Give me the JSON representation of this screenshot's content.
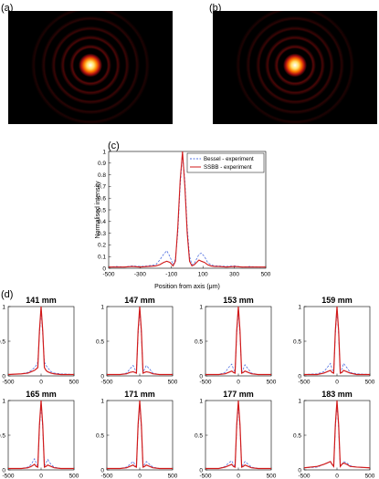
{
  "panels": {
    "a": "(a)",
    "b": "(b)",
    "c": "(c)",
    "d": "(d)"
  },
  "beam_images": [
    {
      "name": "beam-image-a",
      "ring_color": "#b01010",
      "core_color": "#ffe066"
    },
    {
      "name": "beam-image-b",
      "ring_color": "#b01010",
      "core_color": "#ffe066"
    }
  ],
  "chart_data": [
    {
      "type": "line",
      "xlabel": "Position from axis (μm)",
      "ylabel": "Normalised intensity",
      "xlim": [
        -500,
        500
      ],
      "ylim": [
        0,
        1
      ],
      "xticks": [
        "-500",
        "-300",
        "-100",
        "100",
        "300",
        "500"
      ],
      "yticks": [
        "0",
        "0.1",
        "0.2",
        "0.3",
        "0.4",
        "0.5",
        "0.6",
        "0.7",
        "0.8",
        "0.9",
        "1"
      ],
      "legend_position": "top-right",
      "series": [
        {
          "name": "Bessel - experiment",
          "color": "#4f6fe0",
          "style": "dashed",
          "x": [
            -500,
            -450,
            -400,
            -350,
            -300,
            -250,
            -200,
            -175,
            -150,
            -130,
            -110,
            -90,
            -75,
            -60,
            -45,
            -30,
            -15,
            0,
            15,
            30,
            45,
            60,
            75,
            90,
            110,
            130,
            150,
            175,
            200,
            250,
            300,
            350,
            400,
            450,
            500
          ],
          "y": [
            0.01,
            0.015,
            0.01,
            0.02,
            0.015,
            0.02,
            0.03,
            0.07,
            0.12,
            0.15,
            0.1,
            0.03,
            0.08,
            0.3,
            0.7,
            0.98,
            0.75,
            0.35,
            0.1,
            0.03,
            0.04,
            0.08,
            0.12,
            0.13,
            0.1,
            0.05,
            0.03,
            0.02,
            0.02,
            0.015,
            0.02,
            0.01,
            0.015,
            0.01,
            0.01
          ]
        },
        {
          "name": "SSBB - experiment",
          "color": "#d11a1a",
          "style": "solid",
          "x": [
            -500,
            -450,
            -400,
            -350,
            -300,
            -250,
            -200,
            -175,
            -150,
            -130,
            -110,
            -90,
            -75,
            -60,
            -45,
            -30,
            -15,
            0,
            15,
            30,
            45,
            60,
            75,
            90,
            110,
            130,
            150,
            175,
            200,
            250,
            300,
            350,
            400,
            450,
            500
          ],
          "y": [
            0.01,
            0.01,
            0.01,
            0.015,
            0.01,
            0.015,
            0.02,
            0.03,
            0.05,
            0.06,
            0.05,
            0.02,
            0.06,
            0.35,
            0.75,
            1.0,
            0.7,
            0.3,
            0.06,
            0.02,
            0.03,
            0.05,
            0.07,
            0.06,
            0.05,
            0.03,
            0.02,
            0.015,
            0.015,
            0.01,
            0.015,
            0.01,
            0.01,
            0.01,
            0.01
          ]
        }
      ]
    },
    {
      "type": "line",
      "title": "141 mm",
      "xlim": [
        -500,
        500
      ],
      "ylim": [
        0,
        1
      ],
      "xticks": [
        "-500",
        "0",
        "500"
      ],
      "yticks": [
        "0",
        "0.5",
        "1"
      ],
      "series": [
        {
          "color": "#4f6fe0",
          "style": "dashed",
          "x": [
            -500,
            -300,
            -200,
            -150,
            -100,
            -75,
            -50,
            -25,
            0,
            25,
            50,
            75,
            100,
            150,
            200,
            300,
            500
          ],
          "y": [
            0.02,
            0.03,
            0.05,
            0.08,
            0.12,
            0.15,
            0.2,
            0.6,
            0.95,
            0.6,
            0.2,
            0.15,
            0.12,
            0.06,
            0.04,
            0.03,
            0.02
          ]
        },
        {
          "color": "#d11a1a",
          "style": "solid",
          "x": [
            -500,
            -300,
            -200,
            -150,
            -100,
            -75,
            -50,
            -25,
            0,
            25,
            50,
            75,
            100,
            150,
            200,
            300,
            500
          ],
          "y": [
            0.02,
            0.03,
            0.04,
            0.06,
            0.08,
            0.1,
            0.12,
            0.65,
            1.0,
            0.65,
            0.12,
            0.08,
            0.06,
            0.04,
            0.03,
            0.02,
            0.02
          ]
        }
      ]
    },
    {
      "type": "line",
      "title": "147 mm",
      "xlim": [
        -500,
        500
      ],
      "ylim": [
        0,
        1
      ],
      "xticks": [
        "-500",
        "0",
        "500"
      ],
      "yticks": [
        "0",
        "0.5",
        "1"
      ],
      "series": [
        {
          "color": "#4f6fe0",
          "style": "dashed",
          "x": [
            -500,
            -300,
            -200,
            -150,
            -100,
            -75,
            -50,
            -25,
            0,
            25,
            50,
            75,
            100,
            150,
            200,
            300,
            500
          ],
          "y": [
            0.02,
            0.02,
            0.04,
            0.1,
            0.15,
            0.1,
            0.05,
            0.6,
            0.95,
            0.6,
            0.05,
            0.1,
            0.15,
            0.1,
            0.04,
            0.02,
            0.02
          ]
        },
        {
          "color": "#d11a1a",
          "style": "solid",
          "x": [
            -500,
            -300,
            -200,
            -150,
            -100,
            -75,
            -50,
            -25,
            0,
            25,
            50,
            75,
            100,
            150,
            200,
            300,
            500
          ],
          "y": [
            0.02,
            0.02,
            0.03,
            0.05,
            0.06,
            0.05,
            0.04,
            0.65,
            1.0,
            0.65,
            0.04,
            0.05,
            0.06,
            0.05,
            0.03,
            0.02,
            0.02
          ]
        }
      ]
    },
    {
      "type": "line",
      "title": "153 mm",
      "xlim": [
        -500,
        500
      ],
      "ylim": [
        0,
        1
      ],
      "xticks": [
        "-500",
        "0",
        "500"
      ],
      "yticks": [
        "0",
        "0.5",
        "1"
      ],
      "series": [
        {
          "color": "#4f6fe0",
          "style": "dashed",
          "x": [
            -500,
            -300,
            -200,
            -150,
            -100,
            -75,
            -50,
            -25,
            0,
            25,
            50,
            75,
            100,
            150,
            200,
            300,
            500
          ],
          "y": [
            0.02,
            0.02,
            0.05,
            0.12,
            0.17,
            0.1,
            0.05,
            0.6,
            0.95,
            0.6,
            0.05,
            0.1,
            0.16,
            0.1,
            0.04,
            0.02,
            0.02
          ]
        },
        {
          "color": "#d11a1a",
          "style": "solid",
          "x": [
            -500,
            -300,
            -200,
            -150,
            -100,
            -75,
            -50,
            -25,
            0,
            25,
            50,
            75,
            100,
            150,
            200,
            300,
            500
          ],
          "y": [
            0.02,
            0.02,
            0.03,
            0.05,
            0.07,
            0.05,
            0.04,
            0.65,
            1.0,
            0.65,
            0.04,
            0.05,
            0.07,
            0.05,
            0.03,
            0.02,
            0.02
          ]
        }
      ]
    },
    {
      "type": "line",
      "title": "159 mm",
      "xlim": [
        -500,
        500
      ],
      "ylim": [
        0,
        1
      ],
      "xticks": [
        "-500",
        "0",
        "500"
      ],
      "yticks": [
        "0",
        "0.5",
        "1"
      ],
      "series": [
        {
          "color": "#4f6fe0",
          "style": "dashed",
          "x": [
            -500,
            -300,
            -200,
            -150,
            -100,
            -75,
            -50,
            -25,
            0,
            25,
            50,
            75,
            100,
            150,
            200,
            300,
            500
          ],
          "y": [
            0.02,
            0.03,
            0.06,
            0.12,
            0.18,
            0.1,
            0.05,
            0.6,
            0.95,
            0.6,
            0.05,
            0.1,
            0.18,
            0.12,
            0.05,
            0.03,
            0.02
          ]
        },
        {
          "color": "#d11a1a",
          "style": "solid",
          "x": [
            -500,
            -300,
            -200,
            -150,
            -100,
            -75,
            -50,
            -25,
            0,
            25,
            50,
            75,
            100,
            150,
            200,
            300,
            500
          ],
          "y": [
            0.02,
            0.02,
            0.04,
            0.06,
            0.08,
            0.05,
            0.04,
            0.65,
            1.0,
            0.65,
            0.04,
            0.05,
            0.08,
            0.06,
            0.04,
            0.02,
            0.02
          ]
        }
      ]
    },
    {
      "type": "line",
      "title": "165 mm",
      "xlim": [
        -500,
        500
      ],
      "ylim": [
        0,
        1
      ],
      "xticks": [
        "-500",
        "0",
        "500"
      ],
      "yticks": [
        "0",
        "0.5",
        "1"
      ],
      "series": [
        {
          "color": "#4f6fe0",
          "style": "dashed",
          "x": [
            -500,
            -300,
            -200,
            -150,
            -100,
            -75,
            -50,
            -25,
            0,
            25,
            50,
            75,
            100,
            150,
            200,
            300,
            500
          ],
          "y": [
            0.02,
            0.02,
            0.04,
            0.08,
            0.16,
            0.1,
            0.05,
            0.6,
            0.95,
            0.6,
            0.05,
            0.1,
            0.15,
            0.08,
            0.04,
            0.02,
            0.02
          ]
        },
        {
          "color": "#d11a1a",
          "style": "solid",
          "x": [
            -500,
            -300,
            -200,
            -150,
            -100,
            -75,
            -50,
            -25,
            0,
            25,
            50,
            75,
            100,
            150,
            200,
            300,
            500
          ],
          "y": [
            0.02,
            0.02,
            0.03,
            0.05,
            0.08,
            0.05,
            0.04,
            0.65,
            1.0,
            0.65,
            0.04,
            0.05,
            0.07,
            0.05,
            0.03,
            0.02,
            0.02
          ]
        }
      ]
    },
    {
      "type": "line",
      "title": "171 mm",
      "xlim": [
        -500,
        500
      ],
      "ylim": [
        0,
        1
      ],
      "xticks": [
        "-500",
        "0",
        "500"
      ],
      "yticks": [
        "0",
        "0.5",
        "1"
      ],
      "series": [
        {
          "color": "#4f6fe0",
          "style": "dashed",
          "x": [
            -500,
            -300,
            -200,
            -150,
            -100,
            -75,
            -50,
            -25,
            0,
            25,
            50,
            75,
            100,
            150,
            200,
            300,
            500
          ],
          "y": [
            0.02,
            0.02,
            0.04,
            0.08,
            0.12,
            0.08,
            0.05,
            0.6,
            0.95,
            0.6,
            0.05,
            0.08,
            0.12,
            0.08,
            0.04,
            0.02,
            0.02
          ]
        },
        {
          "color": "#d11a1a",
          "style": "solid",
          "x": [
            -500,
            -300,
            -200,
            -150,
            -100,
            -75,
            -50,
            -25,
            0,
            25,
            50,
            75,
            100,
            150,
            200,
            300,
            500
          ],
          "y": [
            0.02,
            0.02,
            0.03,
            0.05,
            0.07,
            0.05,
            0.04,
            0.65,
            1.0,
            0.65,
            0.04,
            0.05,
            0.07,
            0.05,
            0.03,
            0.02,
            0.02
          ]
        }
      ]
    },
    {
      "type": "line",
      "title": "177 mm",
      "xlim": [
        -500,
        500
      ],
      "ylim": [
        0,
        1
      ],
      "xticks": [
        "-500",
        "0",
        "500"
      ],
      "yticks": [
        "0",
        "0.5",
        "1"
      ],
      "series": [
        {
          "color": "#4f6fe0",
          "style": "dashed",
          "x": [
            -500,
            -300,
            -200,
            -150,
            -100,
            -75,
            -50,
            -25,
            0,
            25,
            50,
            75,
            100,
            150,
            200,
            300,
            500
          ],
          "y": [
            0.02,
            0.02,
            0.05,
            0.1,
            0.13,
            0.08,
            0.05,
            0.6,
            0.95,
            0.6,
            0.05,
            0.08,
            0.12,
            0.08,
            0.04,
            0.02,
            0.02
          ]
        },
        {
          "color": "#d11a1a",
          "style": "solid",
          "x": [
            -500,
            -300,
            -200,
            -150,
            -100,
            -75,
            -50,
            -25,
            0,
            25,
            50,
            75,
            100,
            150,
            200,
            300,
            500
          ],
          "y": [
            0.02,
            0.02,
            0.04,
            0.06,
            0.08,
            0.05,
            0.04,
            0.65,
            1.0,
            0.65,
            0.04,
            0.05,
            0.07,
            0.05,
            0.03,
            0.02,
            0.02
          ]
        }
      ]
    },
    {
      "type": "line",
      "title": "183 mm",
      "xlim": [
        -500,
        500
      ],
      "ylim": [
        0,
        1
      ],
      "xticks": [
        "-500",
        "0",
        "500"
      ],
      "yticks": [
        "0",
        "0.5",
        "1"
      ],
      "series": [
        {
          "color": "#4f6fe0",
          "style": "dashed",
          "x": [
            -500,
            -300,
            -200,
            -150,
            -100,
            -75,
            -50,
            -25,
            0,
            25,
            50,
            75,
            100,
            150,
            200,
            300,
            500
          ],
          "y": [
            0.03,
            0.04,
            0.08,
            0.1,
            0.12,
            0.08,
            0.05,
            0.6,
            0.95,
            0.6,
            0.05,
            0.08,
            0.12,
            0.1,
            0.06,
            0.04,
            0.03
          ]
        },
        {
          "color": "#d11a1a",
          "style": "solid",
          "x": [
            -500,
            -300,
            -200,
            -150,
            -100,
            -75,
            -50,
            -25,
            0,
            25,
            50,
            75,
            100,
            150,
            200,
            300,
            500
          ],
          "y": [
            0.03,
            0.05,
            0.08,
            0.1,
            0.12,
            0.08,
            0.05,
            0.65,
            1.0,
            0.65,
            0.05,
            0.08,
            0.1,
            0.08,
            0.05,
            0.04,
            0.03
          ]
        }
      ]
    }
  ]
}
